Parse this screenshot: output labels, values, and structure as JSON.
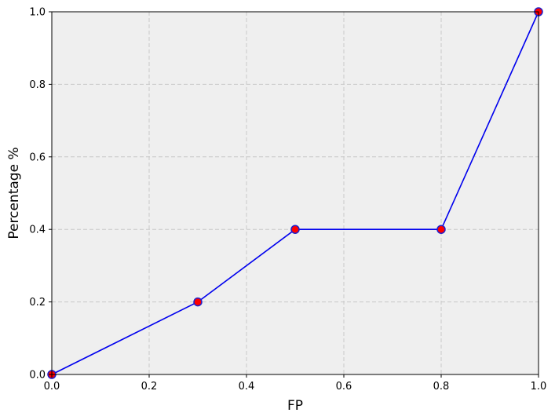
{
  "chart_data": {
    "type": "line",
    "title": "",
    "xlabel": "FP",
    "ylabel": "Percentage %",
    "xlim": [
      0,
      1
    ],
    "ylim": [
      0,
      1
    ],
    "x_ticks": [
      "0.0",
      "0.2",
      "0.4",
      "0.6",
      "0.8",
      "1.0"
    ],
    "y_ticks": [
      "0.0",
      "0.2",
      "0.4",
      "0.6",
      "0.8",
      "1.0"
    ],
    "grid": true,
    "series": [
      {
        "x": [
          0.0,
          0.3,
          0.5,
          0.8,
          1.0
        ],
        "y": [
          0.0,
          0.2,
          0.4,
          0.4,
          1.0
        ]
      }
    ],
    "colors": {
      "line": "#0000ee",
      "marker_fill": "#ff0000",
      "marker_edge": "#1f1fcc",
      "plot_background": "#efefef",
      "grid": "#c8c8c8"
    }
  }
}
